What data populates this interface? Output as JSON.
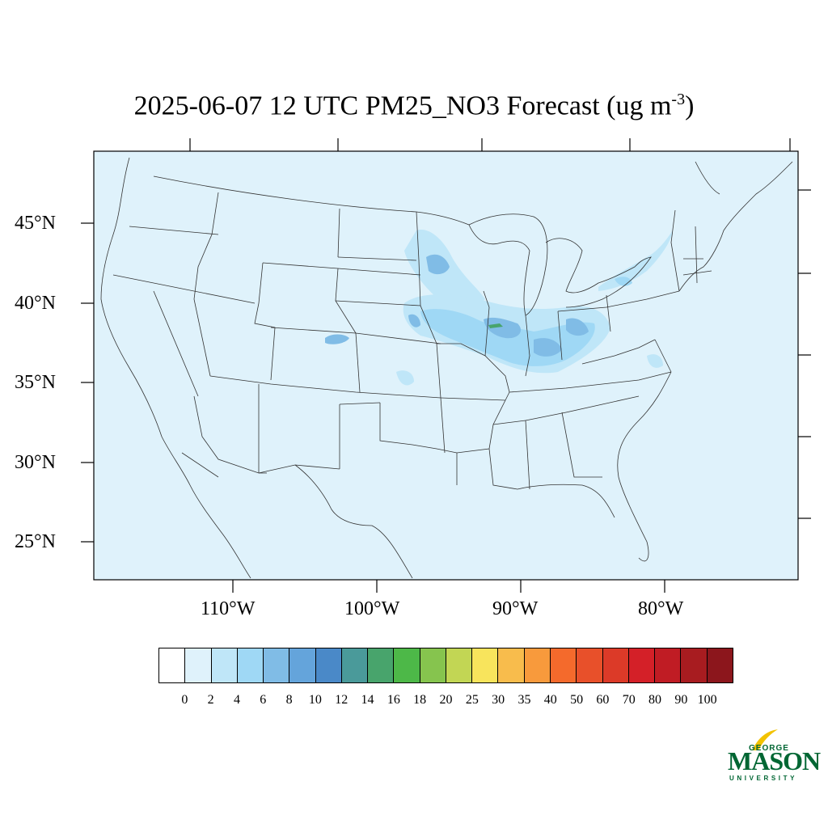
{
  "title": {
    "text": "2025-06-07 12 UTC PM25_NO3 Forecast (ug m",
    "superscript": "-3",
    "close": ")"
  },
  "axes": {
    "lat_labels": [
      "45°N",
      "40°N",
      "35°N",
      "30°N",
      "25°N"
    ],
    "lon_labels": [
      "110°W",
      "100°W",
      "90°W",
      "80°W"
    ]
  },
  "colorbar": {
    "labels": [
      "0",
      "2",
      "4",
      "6",
      "8",
      "10",
      "12",
      "14",
      "16",
      "18",
      "20",
      "25",
      "30",
      "35",
      "40",
      "50",
      "60",
      "70",
      "80",
      "90",
      "100"
    ],
    "colors": [
      "#ffffff",
      "#dff2fb",
      "#bfe6f8",
      "#9fd8f5",
      "#80bce6",
      "#64a4db",
      "#4a89c8",
      "#4a9a9a",
      "#48a46c",
      "#4db848",
      "#86c44e",
      "#c2d654",
      "#f8e45c",
      "#f8bc4c",
      "#f89a3c",
      "#f46a2c",
      "#e8502a",
      "#dc3a28",
      "#d42028",
      "#c01c24",
      "#a81c20",
      "#8c161c"
    ]
  },
  "map": {
    "background": "#dff2fb",
    "plume_color_light": "#bfe6f8",
    "plume_color_mid": "#9fd8f5",
    "plume_color_dark": "#64a4db",
    "plume_color_green": "#48a46c"
  },
  "logo": {
    "george": "GEORGE",
    "mason": "MASON",
    "university": "UNIVERSITY",
    "color": "#006633",
    "accent": "#f2c200"
  }
}
